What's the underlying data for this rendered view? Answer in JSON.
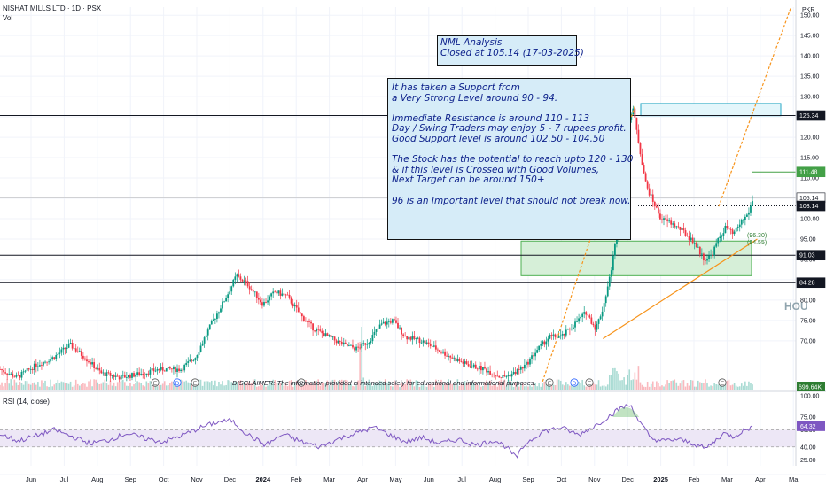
{
  "header": {
    "symbol_line": "NISHAT MILLS LTD · 1D · PSX",
    "volume_label": "Vol",
    "currency": "PKR"
  },
  "annotations": {
    "title_box": "NML Analysis\nClosed at 105.14 (17-03-2025)",
    "analysis_box": "It has taken a Support from\na Very Strong Level around 90 - 94.\n\nImmediate Resistance is around 110 - 113\nDay / Swing Traders may enjoy 5 - 7 rupees profit.\nGood Support level is around 102.50 - 104.50\n\nThe Stock has the potential to reach upto 120 - 130\n& if this level is Crossed with Good Volumes,\nNext Target can be around 150+\n\n96 is an Important level that should not break now.",
    "disclaimer": "DISCLAIMER: The information provided is intended solely for educational and informational purposes.",
    "inline_prices": [
      "(96.30)",
      "(94.55)"
    ],
    "watermark": "HOU"
  },
  "colors": {
    "candle_up": "#089981",
    "candle_down": "#f23645",
    "trend_line": "#f7931a",
    "support_zone": "#d6efd8",
    "resistance_zone": "#e3f6fb",
    "rsi_line": "#7e57c2",
    "rsi_band": "#ede7f6",
    "level_dark": "#131722",
    "label_green": "#2e7d32"
  },
  "chart_data": [
    {
      "type": "candlestick",
      "title": "NISHAT MILLS LTD · 1D · PSX",
      "y_axis": {
        "unit": "PKR",
        "ticks": [
          70,
          75,
          80,
          85,
          90,
          95,
          100,
          105,
          110,
          115,
          120,
          125,
          130,
          135,
          140,
          145,
          150
        ],
        "range": [
          58,
          152
        ]
      },
      "x_axis": {
        "labels": [
          "Jun",
          "Jul",
          "Aug",
          "Sep",
          "Oct",
          "Nov",
          "Dec",
          "2024",
          "Feb",
          "Mar",
          "Apr",
          "May",
          "Jun",
          "Jul",
          "Aug",
          "Sep",
          "Oct",
          "Nov",
          "Dec",
          "2025",
          "Feb",
          "Mar",
          "Apr",
          "Ma"
        ]
      },
      "series": [
        {
          "name": "price",
          "anchors": [
            {
              "d": 0,
              "p": 63
            },
            {
              "d": 14,
              "p": 61
            },
            {
              "d": 30,
              "p": 64
            },
            {
              "d": 45,
              "p": 66
            },
            {
              "d": 58,
              "p": 69
            },
            {
              "d": 70,
              "p": 66
            },
            {
              "d": 84,
              "p": 62
            },
            {
              "d": 100,
              "p": 61
            },
            {
              "d": 118,
              "p": 62
            },
            {
              "d": 132,
              "p": 63
            },
            {
              "d": 150,
              "p": 63
            },
            {
              "d": 162,
              "p": 66
            },
            {
              "d": 175,
              "p": 74
            },
            {
              "d": 188,
              "p": 81
            },
            {
              "d": 196,
              "p": 86
            },
            {
              "d": 205,
              "p": 84
            },
            {
              "d": 218,
              "p": 79
            },
            {
              "d": 228,
              "p": 82
            },
            {
              "d": 238,
              "p": 81
            },
            {
              "d": 250,
              "p": 76
            },
            {
              "d": 260,
              "p": 73
            },
            {
              "d": 272,
              "p": 71
            },
            {
              "d": 285,
              "p": 69
            },
            {
              "d": 296,
              "p": 68
            },
            {
              "d": 306,
              "p": 70
            },
            {
              "d": 316,
              "p": 74
            },
            {
              "d": 326,
              "p": 75
            },
            {
              "d": 336,
              "p": 71
            },
            {
              "d": 350,
              "p": 70
            },
            {
              "d": 362,
              "p": 68
            },
            {
              "d": 374,
              "p": 66
            },
            {
              "d": 388,
              "p": 64
            },
            {
              "d": 402,
              "p": 63
            },
            {
              "d": 416,
              "p": 61
            },
            {
              "d": 426,
              "p": 62
            },
            {
              "d": 436,
              "p": 64
            },
            {
              "d": 446,
              "p": 68
            },
            {
              "d": 456,
              "p": 71
            },
            {
              "d": 466,
              "p": 71
            },
            {
              "d": 476,
              "p": 74
            },
            {
              "d": 486,
              "p": 77
            },
            {
              "d": 494,
              "p": 73
            },
            {
              "d": 500,
              "p": 78
            },
            {
              "d": 506,
              "p": 86
            },
            {
              "d": 512,
              "p": 97
            },
            {
              "d": 516,
              "p": 112
            },
            {
              "d": 521,
              "p": 124
            },
            {
              "d": 525,
              "p": 127
            },
            {
              "d": 530,
              "p": 118
            },
            {
              "d": 536,
              "p": 108
            },
            {
              "d": 542,
              "p": 104
            },
            {
              "d": 548,
              "p": 100
            },
            {
              "d": 556,
              "p": 99
            },
            {
              "d": 566,
              "p": 97
            },
            {
              "d": 576,
              "p": 94
            },
            {
              "d": 584,
              "p": 90
            },
            {
              "d": 590,
              "p": 91
            },
            {
              "d": 596,
              "p": 95
            },
            {
              "d": 602,
              "p": 98
            },
            {
              "d": 608,
              "p": 96
            },
            {
              "d": 614,
              "p": 99
            },
            {
              "d": 620,
              "p": 101
            },
            {
              "d": 625,
              "p": 105.14
            }
          ]
        },
        {
          "name": "Vol",
          "note": "volume histogram in lower pane (values not labeled)",
          "last_value": "699.64K"
        }
      ],
      "levels": [
        {
          "value": 125.34,
          "label": "125.34",
          "style": "solid-dark"
        },
        {
          "value": 111.48,
          "label": "111.48",
          "style": "green"
        },
        {
          "value": 105.14,
          "label": "105.14",
          "style": "last-price"
        },
        {
          "value": 103.14,
          "label": "103.14",
          "style": "dotted-dark"
        },
        {
          "value": 91.03,
          "label": "91.03",
          "style": "solid-dark"
        },
        {
          "value": 84.28,
          "label": "84.28",
          "style": "solid-dark"
        }
      ],
      "zones": [
        {
          "name": "support-zone",
          "from": 86,
          "to": 94.5
        },
        {
          "name": "resistance-zone",
          "from": 125.3,
          "to": 128.3
        }
      ],
      "trend_lines": [
        {
          "name": "dec-rally-line",
          "from": {
            "d": 450,
            "p": 60
          },
          "to": {
            "d": 527,
            "p": 128
          }
        },
        {
          "name": "upper-channel-line",
          "from": {
            "d": 596,
            "p": 103
          },
          "to": {
            "d": 656,
            "p": 152
          }
        },
        {
          "name": "rising-support-line",
          "from": {
            "d": 500,
            "p": 70.5
          },
          "to": {
            "d": 628,
            "p": 95
          }
        }
      ]
    },
    {
      "type": "line",
      "title": "RSI (14, close)",
      "y_axis": {
        "ticks": [
          25.0,
          40.0,
          60.0,
          75.0,
          100.0
        ],
        "range": [
          18,
          102
        ],
        "band": [
          40,
          60
        ]
      },
      "series": [
        {
          "name": "RSI (14, close)",
          "last_value": "64.32",
          "anchors": [
            {
              "d": 0,
              "p": 55
            },
            {
              "d": 15,
              "p": 47
            },
            {
              "d": 30,
              "p": 53
            },
            {
              "d": 45,
              "p": 60
            },
            {
              "d": 60,
              "p": 52
            },
            {
              "d": 75,
              "p": 44
            },
            {
              "d": 90,
              "p": 48
            },
            {
              "d": 105,
              "p": 56
            },
            {
              "d": 120,
              "p": 50
            },
            {
              "d": 135,
              "p": 46
            },
            {
              "d": 150,
              "p": 53
            },
            {
              "d": 165,
              "p": 62
            },
            {
              "d": 180,
              "p": 69
            },
            {
              "d": 192,
              "p": 71
            },
            {
              "d": 205,
              "p": 55
            },
            {
              "d": 220,
              "p": 42
            },
            {
              "d": 235,
              "p": 55
            },
            {
              "d": 250,
              "p": 46
            },
            {
              "d": 265,
              "p": 40
            },
            {
              "d": 280,
              "p": 49
            },
            {
              "d": 295,
              "p": 56
            },
            {
              "d": 310,
              "p": 63
            },
            {
              "d": 322,
              "p": 55
            },
            {
              "d": 336,
              "p": 46
            },
            {
              "d": 350,
              "p": 51
            },
            {
              "d": 365,
              "p": 44
            },
            {
              "d": 380,
              "p": 49
            },
            {
              "d": 395,
              "p": 42
            },
            {
              "d": 410,
              "p": 48
            },
            {
              "d": 420,
              "p": 40
            },
            {
              "d": 428,
              "p": 27
            },
            {
              "d": 436,
              "p": 44
            },
            {
              "d": 450,
              "p": 58
            },
            {
              "d": 465,
              "p": 63
            },
            {
              "d": 480,
              "p": 54
            },
            {
              "d": 495,
              "p": 66
            },
            {
              "d": 505,
              "p": 76
            },
            {
              "d": 515,
              "p": 86
            },
            {
              "d": 523,
              "p": 89
            },
            {
              "d": 530,
              "p": 70
            },
            {
              "d": 540,
              "p": 50
            },
            {
              "d": 550,
              "p": 47
            },
            {
              "d": 562,
              "p": 49
            },
            {
              "d": 575,
              "p": 44
            },
            {
              "d": 585,
              "p": 38
            },
            {
              "d": 592,
              "p": 46
            },
            {
              "d": 600,
              "p": 56
            },
            {
              "d": 608,
              "p": 52
            },
            {
              "d": 615,
              "p": 58
            },
            {
              "d": 625,
              "p": 64.32
            }
          ]
        }
      ]
    }
  ]
}
